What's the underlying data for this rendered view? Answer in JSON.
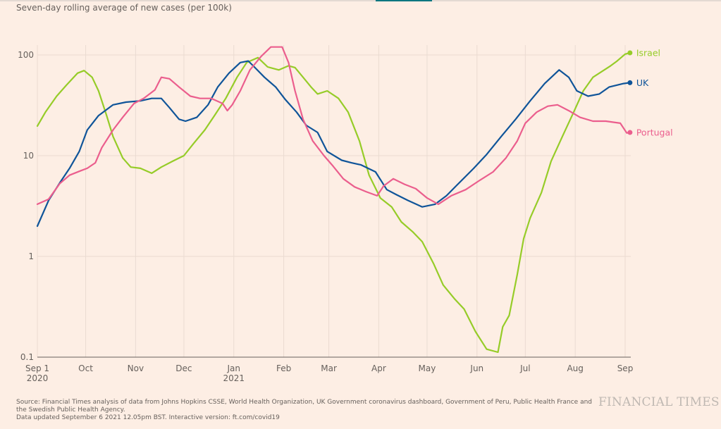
{
  "header": {
    "subtitle": "Seven-day rolling average of new cases (per 100k)"
  },
  "footer": {
    "source_line1": "Source: Financial Times analysis of data from Johns Hopkins CSSE, World Health Organization, UK Government coronavirus dashboard, Government of Peru, Public Health France and",
    "source_line2": "the Swedish Public Health Agency.",
    "source_line3": "Data updated September 6 2021 12.05pm BST. Interactive version: ft.com/covid19",
    "logo": "FINANCIAL TIMES"
  },
  "chart_data": {
    "type": "line",
    "title": "Seven-day rolling average of new cases (per 100k)",
    "xlabel": "",
    "ylabel": "",
    "yscale": "log",
    "ylim": [
      0.1,
      130
    ],
    "yticks": [
      {
        "value": 0.1,
        "label": "0.1"
      },
      {
        "value": 1,
        "label": "1"
      },
      {
        "value": 10,
        "label": "10"
      },
      {
        "value": 100,
        "label": "100"
      }
    ],
    "x_unit": "days since 2020-09-01",
    "xlim": [
      0,
      368
    ],
    "xticks": [
      {
        "day": 0,
        "label": "Sep 1",
        "sub": "2020"
      },
      {
        "day": 30,
        "label": "Oct",
        "sub": ""
      },
      {
        "day": 61,
        "label": "Nov",
        "sub": ""
      },
      {
        "day": 91,
        "label": "Dec",
        "sub": ""
      },
      {
        "day": 122,
        "label": "Jan",
        "sub": "2021"
      },
      {
        "day": 153,
        "label": "Feb",
        "sub": ""
      },
      {
        "day": 181,
        "label": "Mar",
        "sub": ""
      },
      {
        "day": 212,
        "label": "Apr",
        "sub": ""
      },
      {
        "day": 242,
        "label": "May",
        "sub": ""
      },
      {
        "day": 273,
        "label": "Jun",
        "sub": ""
      },
      {
        "day": 303,
        "label": "Jul",
        "sub": ""
      },
      {
        "day": 334,
        "label": "Aug",
        "sub": ""
      },
      {
        "day": 365,
        "label": "Sep",
        "sub": ""
      }
    ],
    "grid": true,
    "legend": "end-of-line labels (right)",
    "series": [
      {
        "name": "Israel",
        "color": "#96cc28",
        "x": [
          0,
          5,
          12,
          18,
          25,
          29,
          34,
          38,
          43,
          47,
          53,
          58,
          64,
          71,
          77,
          84,
          91,
          97,
          104,
          110,
          117,
          124,
          130,
          137,
          143,
          150,
          156,
          160,
          165,
          170,
          174,
          180,
          187,
          193,
          200,
          206,
          213,
          220,
          226,
          233,
          239,
          246,
          252,
          259,
          265,
          272,
          279,
          286,
          289,
          293,
          298,
          302,
          306,
          313,
          319,
          326,
          333,
          339,
          345,
          356,
          360,
          365,
          368
        ],
        "values": [
          19.7,
          27,
          39,
          50,
          66,
          70,
          60,
          44,
          25,
          15.5,
          9.5,
          7.7,
          7.5,
          6.7,
          7.7,
          8.8,
          10,
          13.2,
          18,
          25,
          37,
          60,
          84,
          94,
          76,
          71,
          78,
          75,
          60,
          48,
          41,
          44,
          37,
          27,
          14,
          6.4,
          3.8,
          3.1,
          2.2,
          1.76,
          1.4,
          0.85,
          0.52,
          0.38,
          0.3,
          0.18,
          0.12,
          0.112,
          0.2,
          0.26,
          0.66,
          1.5,
          2.4,
          4.3,
          8.8,
          15.5,
          27,
          44,
          60,
          78,
          87,
          102,
          105
        ]
      },
      {
        "name": "UK",
        "color": "#0f5499",
        "x": [
          0,
          7,
          14,
          20,
          26,
          31,
          38,
          47,
          55,
          64,
          71,
          77,
          82,
          88,
          92,
          99,
          106,
          112,
          119,
          126,
          131,
          134,
          141,
          148,
          154,
          161,
          167,
          174,
          180,
          189,
          195,
          201,
          210,
          217,
          223,
          230,
          239,
          247,
          254,
          260,
          271,
          279,
          288,
          297,
          306,
          315,
          324,
          330,
          335,
          342,
          349,
          355,
          364,
          368
        ],
        "values": [
          2.0,
          3.6,
          5.4,
          7.5,
          11,
          18,
          25,
          32,
          34,
          35,
          37,
          37,
          30,
          23,
          22,
          24,
          32,
          48,
          66,
          84,
          87,
          78,
          60,
          48,
          36,
          27,
          20,
          17,
          11,
          9,
          8.5,
          8.1,
          6.9,
          4.6,
          4.1,
          3.6,
          3.1,
          3.3,
          4.0,
          5.0,
          7.5,
          10.3,
          15.5,
          23,
          35,
          52,
          71,
          60,
          44,
          39,
          41,
          48,
          52,
          53
        ]
      },
      {
        "name": "Portugal",
        "color": "#eb5e8d",
        "x": [
          0,
          7,
          14,
          20,
          27,
          31,
          36,
          40,
          47,
          53,
          60,
          66,
          73,
          77,
          82,
          88,
          95,
          101,
          108,
          115,
          118,
          121,
          126,
          132,
          139,
          145,
          152,
          156,
          160,
          165,
          171,
          178,
          183,
          190,
          197,
          204,
          211,
          215,
          221,
          228,
          235,
          242,
          249,
          257,
          266,
          274,
          283,
          291,
          298,
          303,
          310,
          317,
          323,
          330,
          337,
          345,
          353,
          362,
          366,
          368
        ],
        "values": [
          3.3,
          3.7,
          5.3,
          6.4,
          7.1,
          7.5,
          8.5,
          12,
          18,
          24,
          33,
          37,
          45,
          60,
          58,
          48,
          39,
          37,
          37,
          33,
          28,
          32,
          44,
          71,
          97,
          120,
          120,
          84,
          44,
          23,
          14,
          10,
          8.1,
          5.9,
          4.9,
          4.4,
          4.0,
          5.0,
          5.9,
          5.2,
          4.7,
          3.8,
          3.3,
          4.0,
          4.6,
          5.6,
          6.9,
          9.5,
          14,
          21,
          27,
          31,
          32,
          28,
          24,
          22,
          22,
          21,
          16.8,
          17
        ]
      }
    ]
  }
}
